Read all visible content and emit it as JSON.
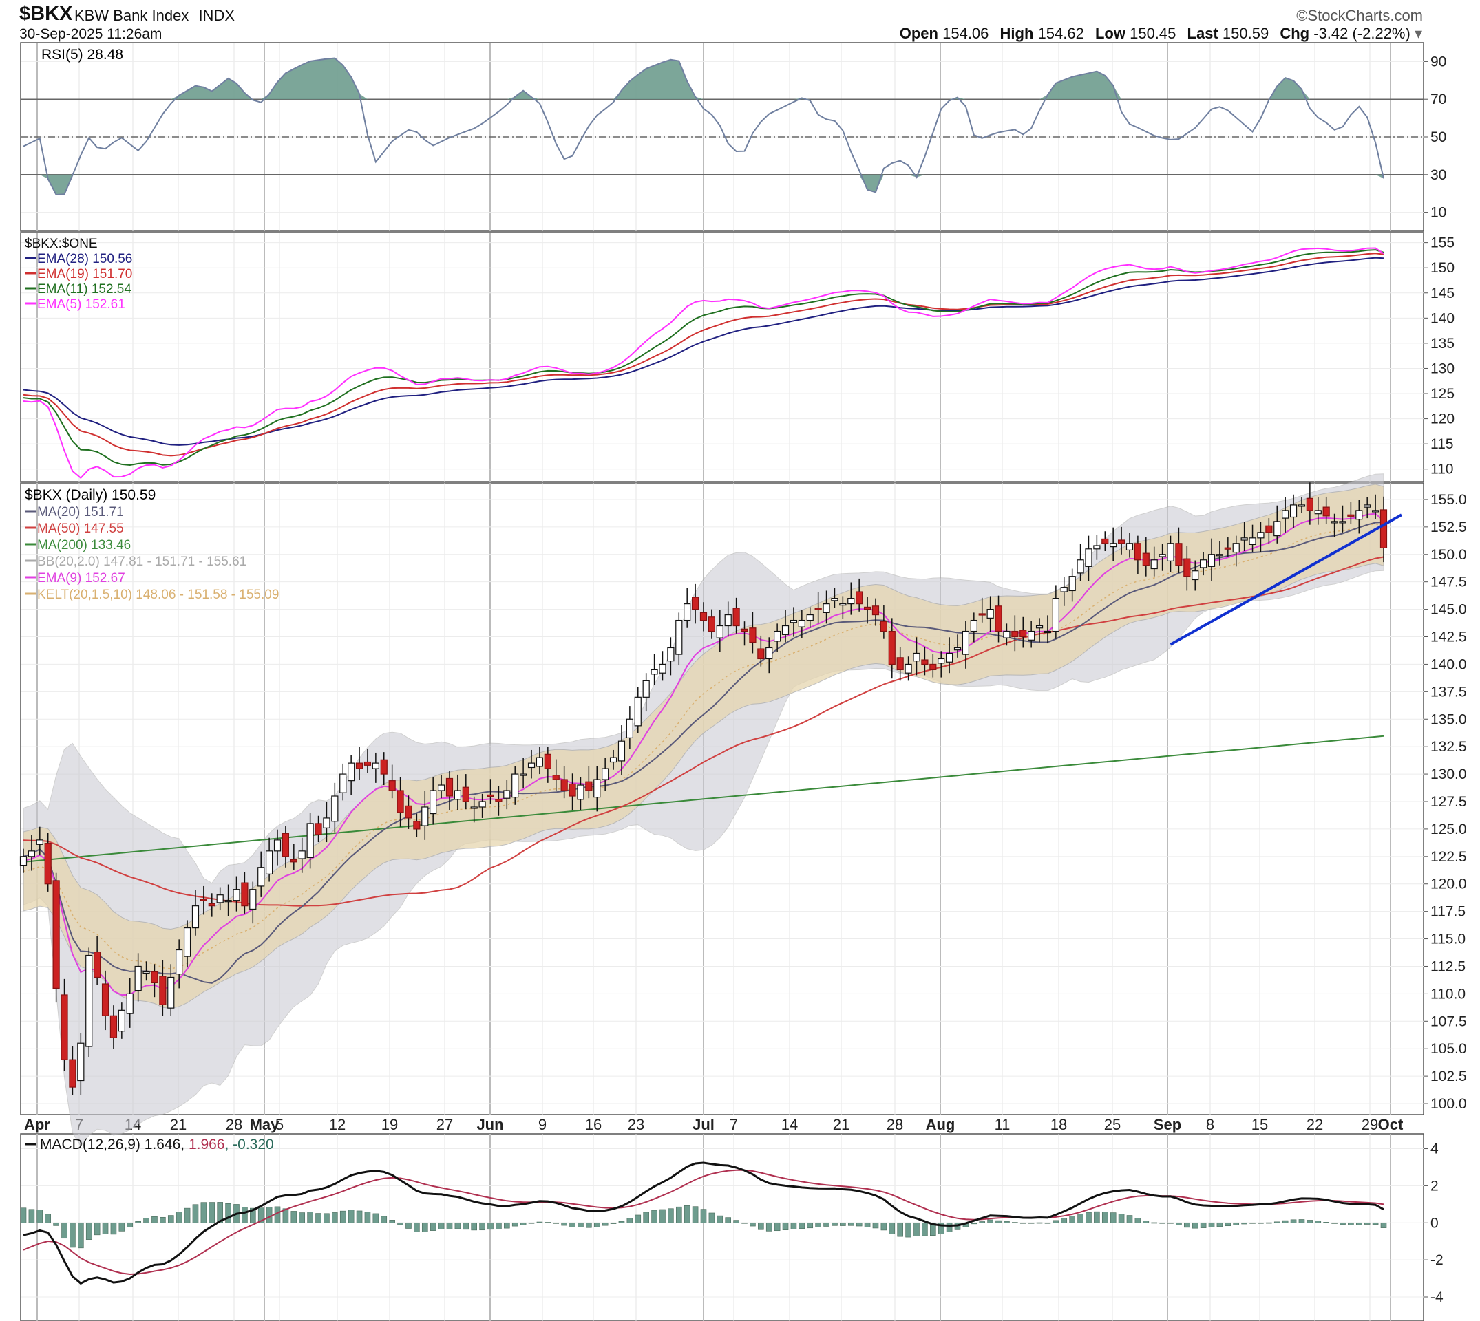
{
  "header": {
    "symbol": "$BKX",
    "name": "KBW Bank Index",
    "exchange": "INDX",
    "datetime": "30-Sep-2025 11:26am",
    "source": "©StockCharts.com",
    "open_label": "Open",
    "open": "154.06",
    "high_label": "High",
    "high": "154.62",
    "low_label": "Low",
    "low": "150.45",
    "last_label": "Last",
    "last": "150.59",
    "chg_label": "Chg",
    "chg": "-3.42 (-2.22%)"
  },
  "colors": {
    "up_fill": "#ffffff",
    "down_fill": "#cc2222",
    "candle_stroke": "#111111",
    "ma20": "#5a5a7a",
    "ma50": "#d04040",
    "ma200": "#3a8a3a",
    "ema9": "#e040e0",
    "bb_fill": "#c8c8d0",
    "kelt_fill": "#e6d6b0",
    "trendline": "#1030d0",
    "rsi_line": "#7080a0",
    "rsi_fill": "#6e9c8e",
    "ema28": "#202080",
    "ema19": "#d03030",
    "ema11": "#207020",
    "ema5": "#ff30ff",
    "macd": "#111111",
    "signal": "#b03050",
    "hist": "#6e9c8e"
  },
  "chart_data": [
    {
      "type": "line",
      "id": "rsi",
      "legend": [
        {
          "label": "RSI(5) 28.48"
        }
      ],
      "y_ticks": [
        90,
        70,
        50,
        30,
        10
      ],
      "ylim": [
        0,
        100
      ],
      "levels": [
        70,
        50,
        30
      ],
      "anchors": [
        [
          0,
          45
        ],
        [
          3,
          50
        ],
        [
          4,
          22
        ],
        [
          6,
          17
        ],
        [
          8,
          33
        ],
        [
          10,
          50
        ],
        [
          12,
          42
        ],
        [
          15,
          50
        ],
        [
          18,
          42
        ],
        [
          22,
          65
        ],
        [
          24,
          72
        ],
        [
          27,
          78
        ],
        [
          29,
          74
        ],
        [
          32,
          82
        ],
        [
          35,
          70
        ],
        [
          37,
          68
        ],
        [
          40,
          83
        ],
        [
          44,
          90
        ],
        [
          48,
          92
        ],
        [
          50,
          86
        ],
        [
          52,
          72
        ],
        [
          54,
          35
        ],
        [
          57,
          48
        ],
        [
          60,
          55
        ],
        [
          63,
          45
        ],
        [
          66,
          50
        ],
        [
          70,
          55
        ],
        [
          74,
          65
        ],
        [
          77,
          75
        ],
        [
          80,
          67
        ],
        [
          82,
          48
        ],
        [
          84,
          35
        ],
        [
          86,
          48
        ],
        [
          88,
          60
        ],
        [
          91,
          68
        ],
        [
          93,
          78
        ],
        [
          96,
          86
        ],
        [
          99,
          90
        ],
        [
          101,
          92
        ],
        [
          103,
          75
        ],
        [
          105,
          65
        ],
        [
          107,
          60
        ],
        [
          109,
          45
        ],
        [
          111,
          40
        ],
        [
          113,
          55
        ],
        [
          115,
          62
        ],
        [
          118,
          67
        ],
        [
          121,
          72
        ],
        [
          123,
          60
        ],
        [
          126,
          58
        ],
        [
          128,
          40
        ],
        [
          130,
          25
        ],
        [
          131,
          15
        ],
        [
          133,
          35
        ],
        [
          136,
          38
        ],
        [
          138,
          28
        ],
        [
          140,
          48
        ],
        [
          142,
          68
        ],
        [
          145,
          72
        ],
        [
          147,
          48
        ],
        [
          150,
          52
        ],
        [
          153,
          54
        ],
        [
          155,
          50
        ],
        [
          157,
          65
        ],
        [
          159,
          78
        ],
        [
          162,
          82
        ],
        [
          166,
          85
        ],
        [
          168,
          80
        ],
        [
          170,
          58
        ],
        [
          172,
          55
        ],
        [
          175,
          50
        ],
        [
          178,
          48
        ],
        [
          181,
          55
        ],
        [
          184,
          67
        ],
        [
          186,
          64
        ],
        [
          188,
          58
        ],
        [
          190,
          52
        ],
        [
          193,
          75
        ],
        [
          195,
          82
        ],
        [
          197,
          78
        ],
        [
          199,
          62
        ],
        [
          201,
          58
        ],
        [
          203,
          52
        ],
        [
          205,
          62
        ],
        [
          206,
          67
        ],
        [
          208,
          58
        ],
        [
          210,
          28
        ]
      ],
      "x_ticks": [
        "Apr",
        "7",
        "14",
        "21",
        "28",
        "May",
        "5",
        "12",
        "19",
        "27",
        "Jun",
        "9",
        "16",
        "23",
        "Jul",
        "7",
        "14",
        "21",
        "28",
        "Aug",
        "11",
        "18",
        "25",
        "Sep",
        "8",
        "15",
        "22",
        "29",
        "Oct"
      ]
    },
    {
      "type": "line",
      "id": "ratio",
      "legend": [
        {
          "label": "$BKX:$ONE"
        },
        {
          "label": "EMA(28) 150.56"
        },
        {
          "label": "EMA(19) 151.70"
        },
        {
          "label": "EMA(11) 152.54"
        },
        {
          "label": "EMA(5) 152.61"
        }
      ],
      "y_ticks": [
        155,
        150,
        145,
        140,
        135,
        130,
        125,
        120,
        115,
        110
      ],
      "ylim": [
        107.5,
        157
      ]
    },
    {
      "type": "candlestick",
      "id": "price",
      "legend": [
        {
          "label": "$BKX (Daily) 150.59"
        },
        {
          "label": "MA(20) 151.71"
        },
        {
          "label": "MA(50) 147.55"
        },
        {
          "label": "MA(200) 133.46"
        },
        {
          "label": "BB(20,2.0) 147.81 - 151.71 - 155.61"
        },
        {
          "label": "EMA(9) 152.67"
        },
        {
          "label": "KELT(20,1.5,10) 148.06 - 151.58 - 155.09"
        }
      ],
      "y_ticks": [
        155.0,
        152.5,
        150.0,
        147.5,
        145.0,
        142.5,
        140.0,
        137.5,
        135.0,
        132.5,
        130.0,
        127.5,
        125.0,
        122.5,
        120.0,
        117.5,
        115.0,
        112.5,
        110.0,
        107.5,
        105.0,
        102.5,
        100.0
      ],
      "y_tick_labels": [
        "155.0",
        "152.5",
        "150.0",
        "147.5",
        "145.0",
        "142.5",
        "140.0",
        "137.5",
        "135.0",
        "132.5",
        "130.0",
        "127.5",
        "125.0",
        "122.5",
        "120.0",
        "117.5",
        "115.0",
        "112.5",
        "110.0",
        "107.5",
        "105.0",
        "102.5",
        "100.0"
      ],
      "ylim": [
        99,
        156.5
      ],
      "closes": [
        122.5,
        123.0,
        124.0,
        120.0,
        110.5,
        104.0,
        101.5,
        105.5,
        113.5,
        111.5,
        108.0,
        106.0,
        108.5,
        110.0,
        112.5,
        112.0,
        111.0,
        109.0,
        111.5,
        114.0,
        116.0,
        118.0,
        118.5,
        118.0,
        119.0,
        118.5,
        119.5,
        118.0,
        119.5,
        121.5,
        123.0,
        124.0,
        122.5,
        122.0,
        123.0,
        125.5,
        124.5,
        126.0,
        128.0,
        130.0,
        131.0,
        130.5,
        130.8,
        131.0,
        130.0,
        128.5,
        126.5,
        126.0,
        125.0,
        127.0,
        128.5,
        129.0,
        128.0,
        128.5,
        127.5,
        127.0,
        127.5,
        128.0,
        127.5,
        128.5,
        130.0,
        130.0,
        131.0,
        131.5,
        130.5,
        129.5,
        128.5,
        128.0,
        129.0,
        128.5,
        129.5,
        130.5,
        131.5,
        133.0,
        135.0,
        137.0,
        138.5,
        139.5,
        140.0,
        141.5,
        144.0,
        145.5,
        145.0,
        144.0,
        143.0,
        143.5,
        144.5,
        143.5,
        143.0,
        142.0,
        140.5,
        141.5,
        143.0,
        143.5,
        144.0,
        144.0,
        144.5,
        145.0,
        145.5,
        146.0,
        145.5,
        146.0,
        145.5,
        145.0,
        144.5,
        143.0,
        140.0,
        139.5,
        140.0,
        141.0,
        140.0,
        139.5,
        140.5,
        141.0,
        141.5,
        143.0,
        144.0,
        144.5,
        145.0,
        143.0,
        143.0,
        142.5,
        142.5,
        143.0,
        143.5,
        143.0,
        146.0,
        147.0,
        148.0,
        149.5,
        150.5,
        150.8,
        151.0,
        151.0,
        151.0,
        151.0,
        149.5,
        149.0,
        149.5,
        150.0,
        151.0,
        149.0,
        148.0,
        148.5,
        149.5,
        150.0,
        150.0,
        150.5,
        151.0,
        151.5,
        151.5,
        152.0,
        152.0,
        153.0,
        154.0,
        154.5,
        154.5,
        154.0,
        154.0,
        153.5,
        153.0,
        153.0,
        153.5,
        154.0,
        154.5,
        154.0,
        150.59
      ],
      "series": [
        {
          "name": "$BKX (Daily)",
          "values": []
        }
      ]
    },
    {
      "type": "line",
      "id": "macd",
      "legend": [
        {
          "label": "MACD(12,26,9) 1.646, "
        },
        {
          "label": "1.966"
        },
        {
          "label": ", -0.320"
        }
      ],
      "y_ticks": [
        4,
        2,
        0,
        -2,
        -4
      ],
      "ylim": [
        -5.3,
        4.8
      ]
    }
  ]
}
